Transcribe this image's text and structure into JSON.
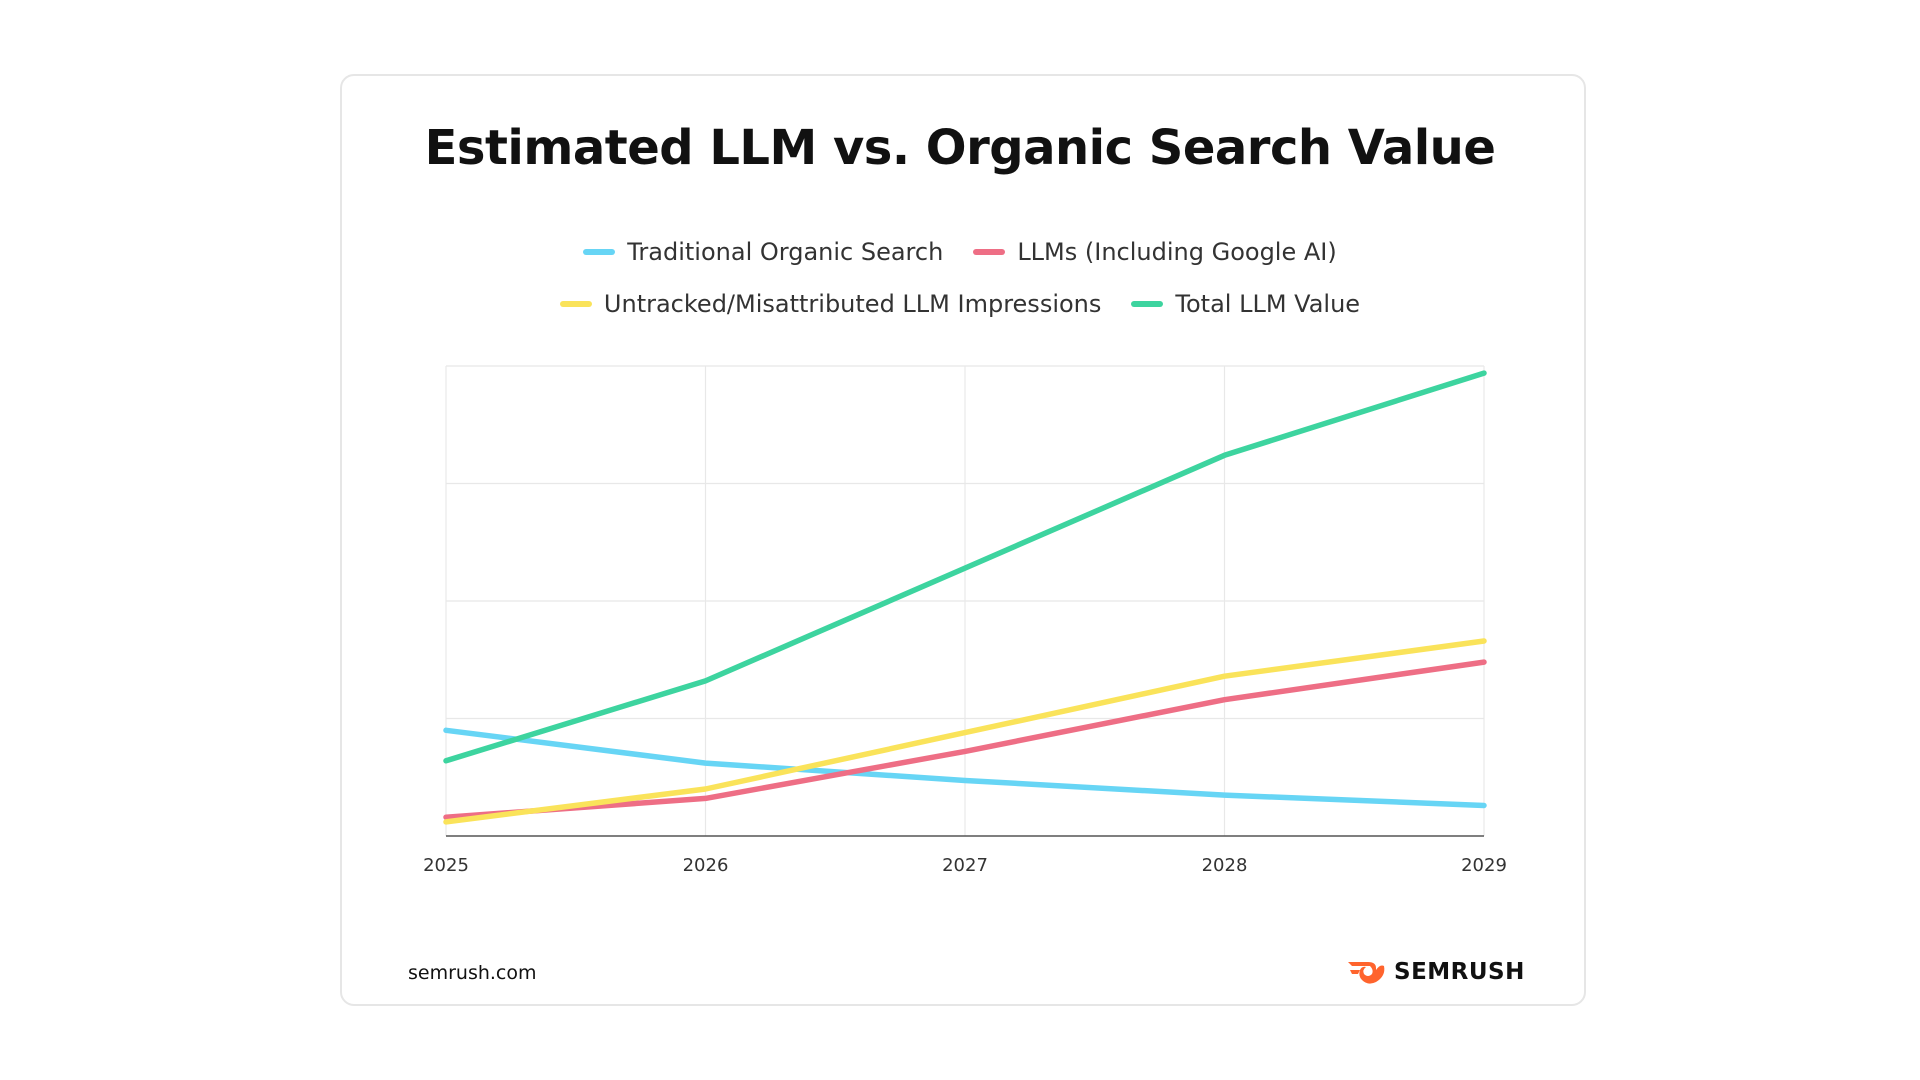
{
  "chart_data": {
    "type": "line",
    "title": "Estimated LLM vs. Organic Search Value",
    "xlabel": "",
    "ylabel": "",
    "x": [
      "2025",
      "2026",
      "2027",
      "2028",
      "2029"
    ],
    "ylim": [
      0,
      100
    ],
    "grid": true,
    "legend_position": "top",
    "series": [
      {
        "name": "Traditional Organic Search",
        "color": "#67d5f5",
        "values": [
          22.5,
          15.5,
          11.8,
          8.7,
          6.5
        ]
      },
      {
        "name": "LLMs (Including Google AI)",
        "color": "#ee6e85",
        "values": [
          4,
          8,
          18,
          29,
          37
        ]
      },
      {
        "name": "Untracked/Misattributed LLM Impressions",
        "color": "#fae35a",
        "values": [
          3,
          10,
          22,
          34,
          41.5
        ]
      },
      {
        "name": "Total LLM Value",
        "color": "#3dd49f",
        "values": [
          16,
          33,
          57,
          81,
          98.5
        ]
      }
    ]
  },
  "footer": {
    "source": "semrush.com",
    "brand": "SEMRUSH",
    "brand_icon": "semrush-fire-icon",
    "brand_color": "#ff642d"
  }
}
